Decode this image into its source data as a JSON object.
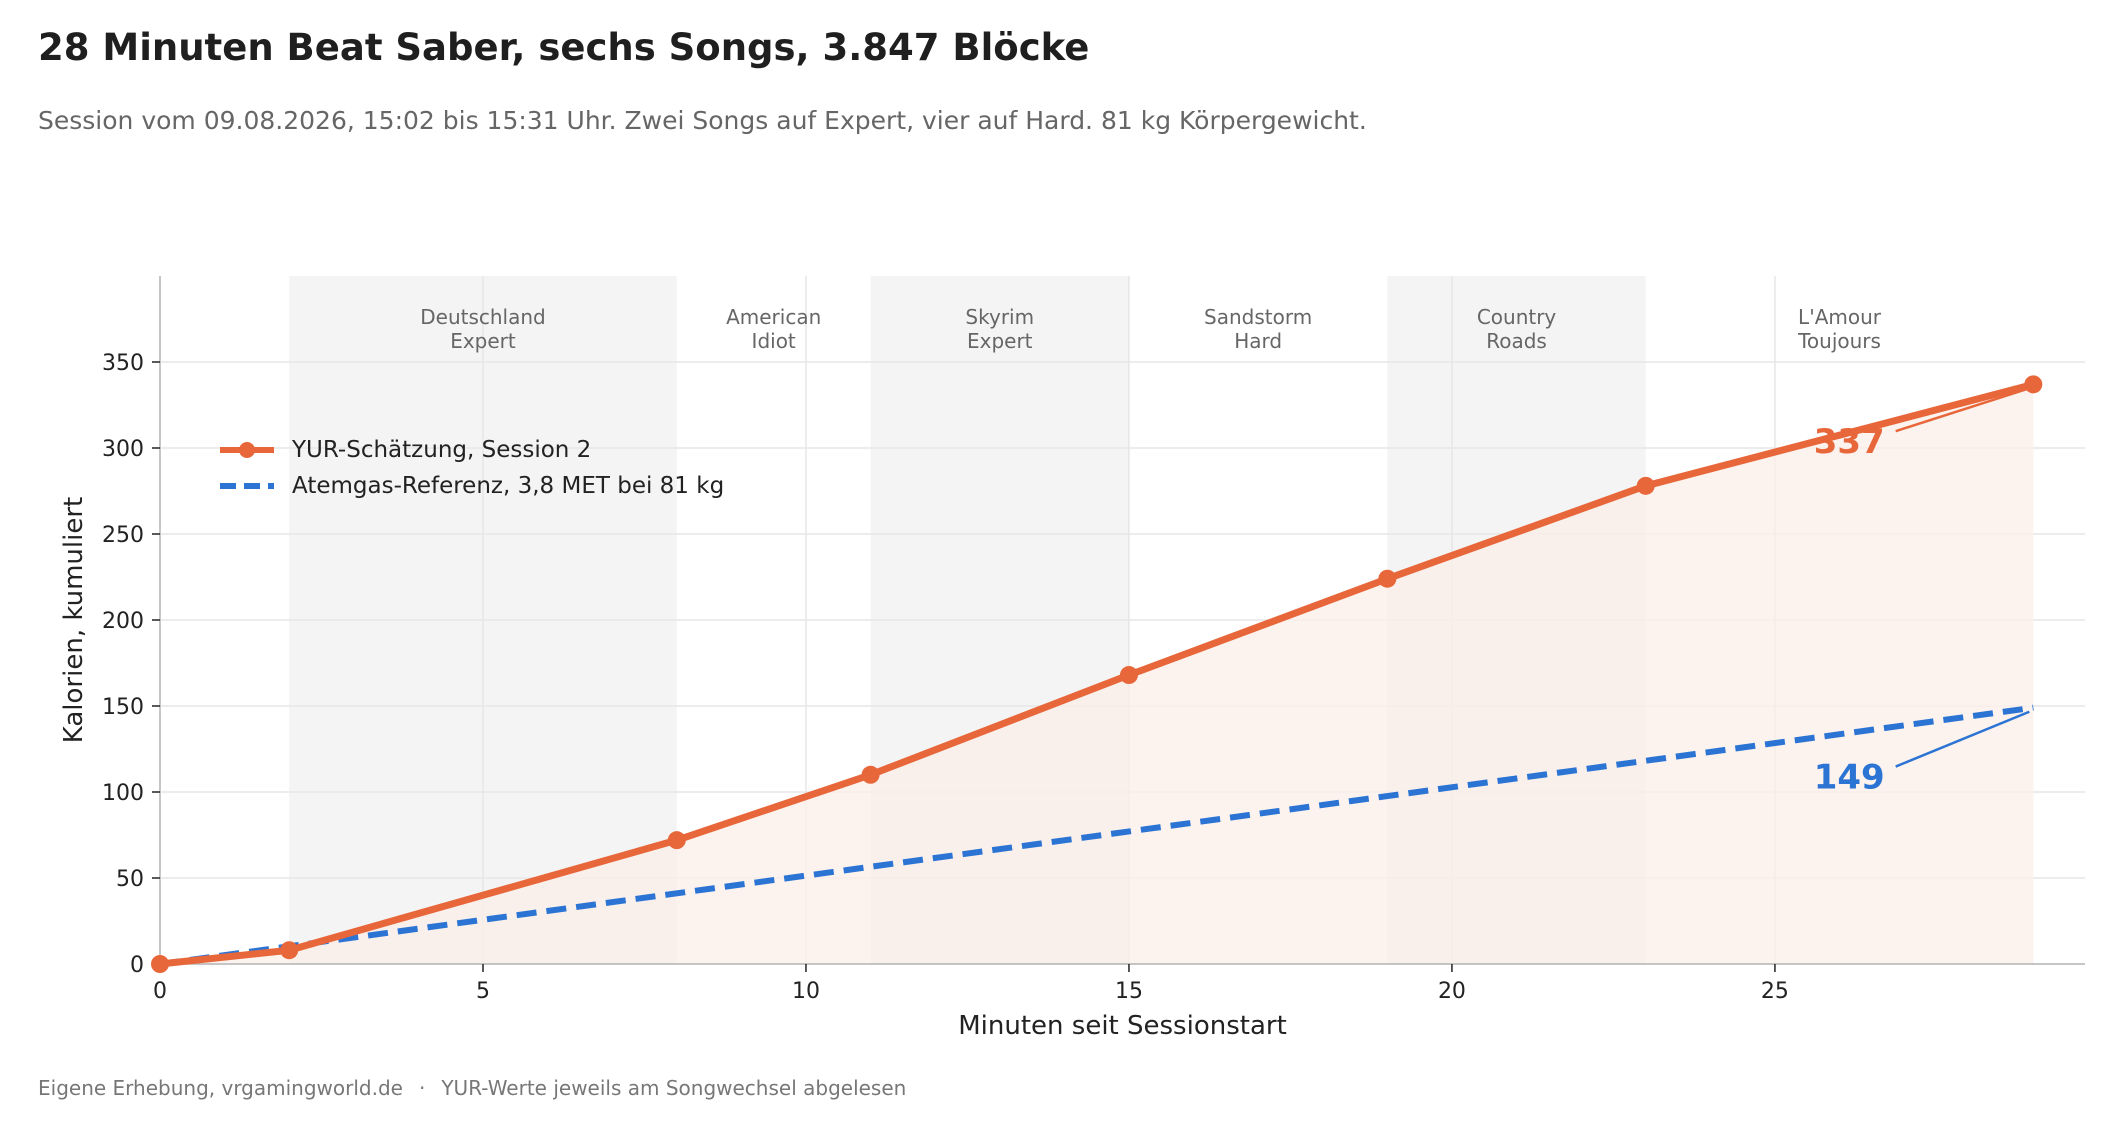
{
  "header": {
    "title": "28 Minuten Beat Saber, sechs Songs, 3.847 Blöcke",
    "subtitle": "Session vom 09.08.2026, 15:02 bis 15:31 Uhr. Zwei Songs auf Expert, vier auf Hard. 81 kg Körpergewicht."
  },
  "footer": {
    "source": "Eigene Erhebung, vrgamingworld.de",
    "separator": "·",
    "note": "YUR-Werte jeweils am Songwechsel abgelesen"
  },
  "colors": {
    "yur": "#e8673a",
    "reference": "#2b74d4",
    "band_shaded": "#f4f4f4",
    "area_fill": "#fbeee8",
    "grid": "#e6e6e6",
    "axis": "#b3b3b3",
    "text": "#222222",
    "muted_text": "#666666"
  },
  "chart_data": {
    "type": "line",
    "xlabel": "Minuten seit Sessionstart",
    "ylabel": "Kalorien, kumuliert",
    "xlim": [
      0,
      29.8
    ],
    "ylim": [
      0,
      400
    ],
    "xticks": [
      0,
      5,
      10,
      15,
      20,
      25
    ],
    "yticks": [
      0,
      50,
      100,
      150,
      200,
      250,
      300,
      350
    ],
    "grid": true,
    "legend_position": "upper-left",
    "songs": [
      {
        "start": 2,
        "end": 8,
        "line1": "Deutschland",
        "line2": "Expert",
        "shaded": true
      },
      {
        "start": 8,
        "end": 11,
        "line1": "American",
        "line2": "Idiot",
        "shaded": false
      },
      {
        "start": 11,
        "end": 15,
        "line1": "Skyrim",
        "line2": "Expert",
        "shaded": true
      },
      {
        "start": 15,
        "end": 19,
        "line1": "Sandstorm",
        "line2": "Hard",
        "shaded": false
      },
      {
        "start": 19,
        "end": 23,
        "line1": "Country",
        "line2": "Roads",
        "shaded": true
      },
      {
        "start": 23,
        "end": 29,
        "line1": "L'Amour",
        "line2": "Toujours",
        "shaded": false
      }
    ],
    "series": [
      {
        "name": "YUR-Schätzung, Session 2",
        "style": "solid",
        "markers": true,
        "x": [
          0,
          2,
          8,
          11,
          15,
          19,
          23,
          29
        ],
        "y": [
          0,
          8,
          72,
          110,
          168,
          224,
          278,
          337
        ],
        "end_label": "337"
      },
      {
        "name": "Atemgas-Referenz, 3,8 MET bei 81 kg",
        "style": "dashed",
        "markers": false,
        "x": [
          0,
          29
        ],
        "y": [
          0,
          149
        ],
        "end_label": "149"
      }
    ],
    "annotations": [
      {
        "series": 0,
        "text": "337",
        "x": 25.6,
        "y": 297
      },
      {
        "series": 1,
        "text": "149",
        "x": 25.6,
        "y": 102
      }
    ]
  }
}
